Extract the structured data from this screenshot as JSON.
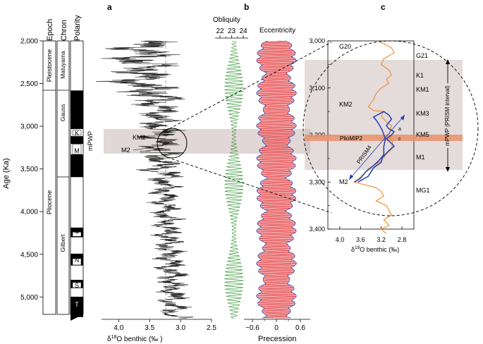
{
  "panel_labels": {
    "a": "a",
    "b": "b",
    "c": "c"
  },
  "age_axis": {
    "label": "Age (Ka)",
    "ticks": [
      "2,000",
      "2,500",
      "3,000",
      "3,500",
      "4,000",
      "4,500",
      "5,000"
    ]
  },
  "strat_columns": {
    "headers": [
      "Epoch",
      "Chron",
      "Polarity"
    ],
    "epochs": [
      "Pleistocene",
      "Pliocene"
    ],
    "chrons": [
      "Matuyama",
      "Gauss",
      "Gilbert"
    ],
    "subchrons": [
      "K",
      "M",
      "C",
      "N",
      "S",
      "T"
    ],
    "polarity_normal": [
      [
        2581,
        3032
      ],
      [
        3116,
        3207
      ],
      [
        3330,
        3596
      ],
      [
        4187,
        4300
      ],
      [
        4493,
        4631
      ],
      [
        4799,
        4896
      ],
      [
        4997,
        5235
      ]
    ]
  },
  "mpwp_label": "mPWP",
  "panel_a": {
    "annotations": [
      "KM2",
      "M2"
    ],
    "xlabel_prefix": "δ",
    "xlabel_sup": "18",
    "xlabel_rest": "O benthic (‰ )",
    "xticks": [
      "4.0",
      "3.5",
      "3.0",
      "2.5"
    ]
  },
  "panel_b": {
    "obliquity_title": "Obliquity",
    "obliquity_ticks": [
      "22",
      "23",
      "24"
    ],
    "eccentricity_title": "Eccentricity",
    "precession_label": "Precession",
    "precession_ticks": [
      "−0.6",
      "0",
      "0.6"
    ]
  },
  "panel_c": {
    "yticks": [
      "3,000",
      "3,100",
      "3,200",
      "3,300",
      "3,400"
    ],
    "xticks": [
      "4.0",
      "3.6",
      "3.2",
      "2.8"
    ],
    "stages": [
      "G20",
      "G21",
      "K1",
      "KM1",
      "KM2",
      "KM3",
      "KM5",
      "M1",
      "M2",
      "MG1"
    ],
    "small_labels": [
      "a",
      "c"
    ],
    "pliomip2_label": "PlioMIP2",
    "prism_label": "PRISM4",
    "interval_label": "mPWP (PRISM interval)",
    "xlabel_prefix": "δ",
    "xlabel_sup": "18",
    "xlabel_rest": "O benthic (‰)"
  },
  "colors": {
    "obliquity": "#3a9a3a",
    "eccentricity": "#1f3fb0",
    "precession": "#e0282d",
    "precession_fill": "#f2a0a0",
    "orange_record": "#f08a2a",
    "prism_record": "#1f3fb0",
    "mpwp_band": "#c9b7b7",
    "pliomip2_band": "#e8906a"
  },
  "chart_data": {
    "type": "line",
    "y_axis": {
      "label": "Age (Ka)",
      "range": [
        2000,
        5250
      ]
    },
    "panel_a_benthic_d18O": {
      "xlim": [
        4.3,
        2.5
      ],
      "mean_line": 3.25,
      "key_points": [
        {
          "label": "KM2",
          "age": 3115,
          "d18O": 3.3
        },
        {
          "label": "M2",
          "age": 3300,
          "d18O": 3.65
        }
      ]
    },
    "panel_c_benthic_d18O": {
      "xlim": [
        4.3,
        2.5
      ],
      "ylim": [
        3000,
        3410
      ],
      "series": [
        {
          "name": "PRISM4",
          "points": [
            [
              3.65,
              3300
            ],
            [
              3.45,
              3288
            ],
            [
              3.35,
              3270
            ],
            [
              3.2,
              3258
            ],
            [
              3.18,
              3248
            ],
            [
              3.05,
              3233
            ],
            [
              2.95,
              3224
            ],
            [
              3.0,
              3218
            ],
            [
              3.1,
              3208
            ],
            [
              3.0,
              3200
            ],
            [
              2.95,
              3193
            ],
            [
              3.05,
              3187
            ],
            [
              3.1,
              3180
            ],
            [
              3.05,
              3173
            ],
            [
              3.0,
              3166
            ],
            [
              3.05,
              3158
            ],
            [
              3.15,
              3150
            ],
            [
              3.35,
              3162
            ],
            [
              3.3,
              3168
            ],
            [
              3.25,
              3176
            ],
            [
              3.18,
              3190
            ],
            [
              3.12,
              3208
            ],
            [
              3.15,
              3225
            ],
            [
              3.15,
              3242
            ],
            [
              3.25,
              3255
            ],
            [
              3.35,
              3265
            ],
            [
              3.5,
              3278
            ],
            [
              3.6,
              3292
            ],
            [
              3.72,
              3300
            ]
          ]
        }
      ],
      "intervals": [
        {
          "name": "mPWP (PRISM interval)",
          "range": [
            3025,
            3264
          ]
        },
        {
          "name": "PlioMIP2",
          "range": [
            3201,
            3209
          ]
        }
      ]
    }
  }
}
